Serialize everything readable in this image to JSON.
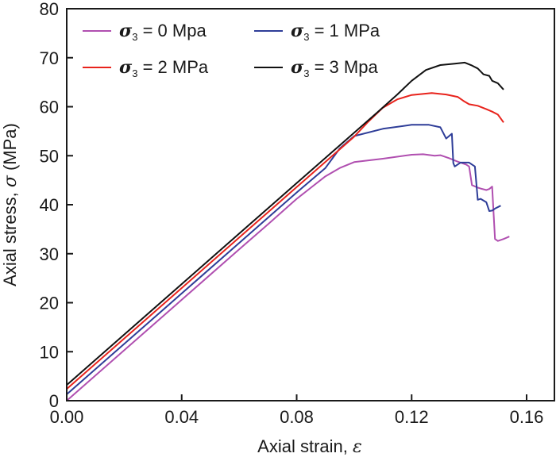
{
  "chart_data": {
    "type": "line",
    "title": "",
    "xlabel": "Axial strain, ",
    "xlabel_symbol": "ε",
    "ylabel": "Axial stress, ",
    "ylabel_symbol": "σ",
    "ylabel_unit": " (MPa)",
    "xlim": [
      0,
      0.17
    ],
    "ylim": [
      0,
      80
    ],
    "xticks": [
      0.0,
      0.04,
      0.08,
      0.12,
      0.16
    ],
    "xtick_labels": [
      "0.00",
      "0.04",
      "0.08",
      "0.12",
      "0.16"
    ],
    "yticks": [
      0,
      10,
      20,
      30,
      40,
      50,
      60,
      70,
      80
    ],
    "ytick_labels": [
      "0",
      "10",
      "20",
      "30",
      "40",
      "50",
      "60",
      "70",
      "80"
    ],
    "grid": false,
    "legend": {
      "placement": "top-left",
      "columns": 2
    },
    "series": [
      {
        "name": "σ3 = 0 Mpa",
        "legend_symbol": "σ",
        "legend_sub": "3",
        "legend_text": " = 0 Mpa",
        "color": "#b04fb0",
        "x": [
          0.0,
          0.02,
          0.04,
          0.06,
          0.07,
          0.08,
          0.085,
          0.09,
          0.095,
          0.1,
          0.11,
          0.12,
          0.124,
          0.128,
          0.13,
          0.133,
          0.136,
          0.139,
          0.14,
          0.141,
          0.143,
          0.144,
          0.146,
          0.147,
          0.148,
          0.149,
          0.15,
          0.152,
          0.154
        ],
        "y": [
          0.0,
          10.3,
          20.6,
          30.9,
          36.0,
          41.2,
          43.5,
          45.8,
          47.5,
          48.7,
          49.4,
          50.2,
          50.3,
          50.0,
          50.1,
          49.5,
          48.8,
          48.2,
          47.8,
          44.0,
          43.5,
          43.3,
          43.0,
          43.2,
          43.7,
          33.0,
          32.6,
          33.0,
          33.5
        ]
      },
      {
        "name": "σ3 = 1 MPa",
        "legend_symbol": "σ",
        "legend_sub": "3",
        "legend_text": " = 1 MPa",
        "color": "#2e3d98",
        "x": [
          0.0,
          0.02,
          0.04,
          0.06,
          0.08,
          0.09,
          0.095,
          0.1,
          0.11,
          0.12,
          0.126,
          0.13,
          0.132,
          0.134,
          0.1345,
          0.135,
          0.137,
          0.14,
          0.142,
          0.143,
          0.144,
          0.146,
          0.147,
          0.148,
          0.149,
          0.151
        ],
        "y": [
          1.3,
          11.6,
          21.9,
          32.2,
          42.5,
          47.5,
          51.5,
          54.0,
          55.5,
          56.3,
          56.3,
          55.8,
          53.5,
          54.5,
          48.5,
          47.8,
          48.6,
          48.6,
          47.8,
          41.0,
          41.2,
          40.5,
          38.7,
          38.8,
          39.2,
          39.8
        ]
      },
      {
        "name": "σ3 = 2 MPa",
        "legend_symbol": "σ",
        "legend_sub": "3",
        "legend_text": " = 2 MPa",
        "color": "#e8231c",
        "x": [
          0.0,
          0.02,
          0.04,
          0.06,
          0.08,
          0.1,
          0.105,
          0.11,
          0.115,
          0.12,
          0.127,
          0.132,
          0.136,
          0.138,
          0.14,
          0.143,
          0.146,
          0.148,
          0.15,
          0.151,
          0.152
        ],
        "y": [
          2.4,
          12.7,
          23.0,
          33.3,
          43.6,
          53.9,
          57.0,
          59.8,
          61.5,
          62.4,
          62.8,
          62.5,
          62.0,
          61.2,
          60.5,
          60.2,
          59.5,
          59.0,
          58.4,
          57.6,
          56.8
        ]
      },
      {
        "name": "σ3 = 3 Mpa",
        "legend_symbol": "σ",
        "legend_sub": "3",
        "legend_text": " = 3 Mpa",
        "color": "#111111",
        "x": [
          0.0,
          0.02,
          0.04,
          0.06,
          0.08,
          0.1,
          0.108,
          0.115,
          0.12,
          0.125,
          0.13,
          0.135,
          0.1385,
          0.141,
          0.143,
          0.145,
          0.147,
          0.148,
          0.15,
          0.152
        ],
        "y": [
          3.2,
          13.5,
          23.8,
          34.1,
          44.4,
          54.7,
          58.8,
          62.5,
          65.3,
          67.5,
          68.5,
          68.8,
          69.0,
          68.4,
          67.8,
          66.6,
          66.3,
          65.3,
          64.8,
          63.5
        ]
      }
    ]
  }
}
